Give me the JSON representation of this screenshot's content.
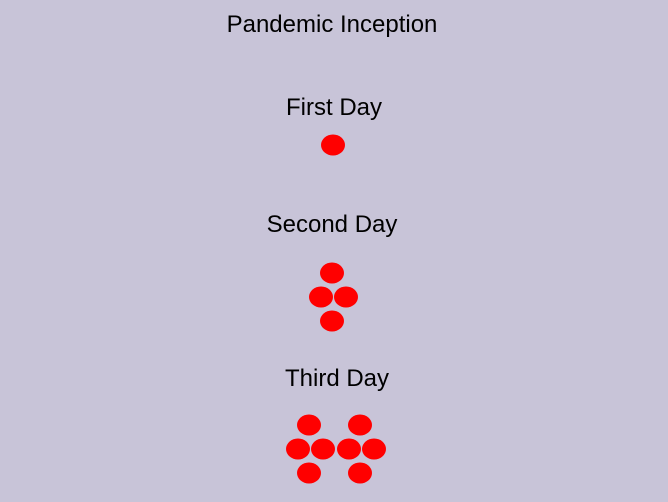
{
  "title": "Pandemic Inception",
  "colors": {
    "background": "#c8c4d8",
    "infected_dot": "#ff0000"
  },
  "days": [
    {
      "label": "First Day",
      "infected_count": 1
    },
    {
      "label": "Second Day",
      "infected_count": 4
    },
    {
      "label": "Third Day",
      "infected_count": 8
    }
  ]
}
